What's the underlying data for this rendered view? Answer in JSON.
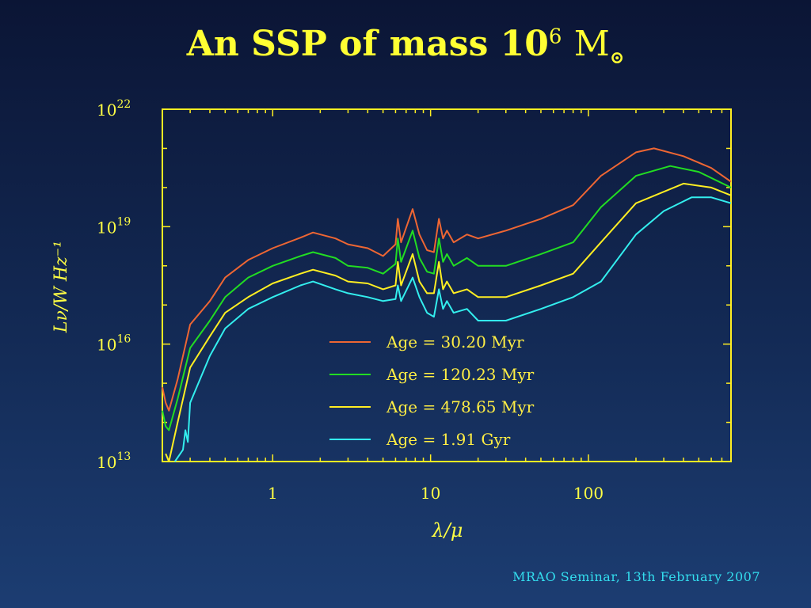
{
  "slide": {
    "title_text": "An SSP of mass ",
    "title_base": "10",
    "title_exponent": "6",
    "title_unit": "M",
    "title_sun_symbol": "⊙",
    "footer": "MRAO Seminar, 13th February 2007"
  },
  "chart_data": {
    "type": "line",
    "title": "An SSP of mass 10^6 M⊙",
    "xlabel": "λ/μ",
    "ylabel": "Lν/W Hz⁻¹",
    "xscale": "log",
    "yscale": "log",
    "xlim": [
      0.2,
      800
    ],
    "ylim_log10": [
      13,
      22
    ],
    "x_ticks": [
      {
        "label": "1",
        "value": 1
      },
      {
        "label": "10",
        "value": 10
      },
      {
        "label": "100",
        "value": 100
      }
    ],
    "y_ticks": [
      {
        "base": "10",
        "exp": "13",
        "log10": 13
      },
      {
        "base": "10",
        "exp": "16",
        "log10": 16
      },
      {
        "base": "10",
        "exp": "19",
        "log10": 19
      },
      {
        "base": "10",
        "exp": "22",
        "log10": 22
      }
    ],
    "legend_position": "lower-center",
    "series": [
      {
        "name": "Age = 30.20 Myr",
        "color": "#ee6633",
        "points": [
          [
            0.2,
            14.9
          ],
          [
            0.21,
            14.5
          ],
          [
            0.22,
            14.3
          ],
          [
            0.25,
            15.1
          ],
          [
            0.3,
            16.5
          ],
          [
            0.4,
            17.1
          ],
          [
            0.5,
            17.7
          ],
          [
            0.7,
            18.15
          ],
          [
            1.0,
            18.45
          ],
          [
            1.5,
            18.72
          ],
          [
            1.8,
            18.85
          ],
          [
            2.5,
            18.7
          ],
          [
            3,
            18.55
          ],
          [
            4,
            18.45
          ],
          [
            5,
            18.25
          ],
          [
            6,
            18.55
          ],
          [
            6.2,
            19.2
          ],
          [
            6.5,
            18.6
          ],
          [
            7.7,
            19.45
          ],
          [
            8.5,
            18.8
          ],
          [
            9.5,
            18.4
          ],
          [
            10.5,
            18.35
          ],
          [
            11.3,
            19.2
          ],
          [
            12,
            18.7
          ],
          [
            12.7,
            18.9
          ],
          [
            14,
            18.6
          ],
          [
            17,
            18.8
          ],
          [
            20,
            18.7
          ],
          [
            30,
            18.9
          ],
          [
            50,
            19.2
          ],
          [
            80,
            19.55
          ],
          [
            120,
            20.3
          ],
          [
            200,
            20.9
          ],
          [
            260,
            21.0
          ],
          [
            400,
            20.8
          ],
          [
            600,
            20.5
          ],
          [
            800,
            20.15
          ]
        ]
      },
      {
        "name": "Age = 120.23 Myr",
        "color": "#22dd22",
        "points": [
          [
            0.2,
            14.3
          ],
          [
            0.21,
            13.9
          ],
          [
            0.22,
            13.8
          ],
          [
            0.25,
            14.6
          ],
          [
            0.3,
            15.9
          ],
          [
            0.4,
            16.6
          ],
          [
            0.5,
            17.2
          ],
          [
            0.7,
            17.7
          ],
          [
            1.0,
            18.0
          ],
          [
            1.5,
            18.25
          ],
          [
            1.8,
            18.35
          ],
          [
            2.5,
            18.2
          ],
          [
            3,
            18.0
          ],
          [
            4,
            17.95
          ],
          [
            5,
            17.8
          ],
          [
            6,
            18.05
          ],
          [
            6.2,
            18.7
          ],
          [
            6.5,
            18.1
          ],
          [
            7.7,
            18.9
          ],
          [
            8.5,
            18.2
          ],
          [
            9.5,
            17.85
          ],
          [
            10.5,
            17.8
          ],
          [
            11.3,
            18.7
          ],
          [
            12,
            18.1
          ],
          [
            12.7,
            18.3
          ],
          [
            14,
            18.0
          ],
          [
            17,
            18.2
          ],
          [
            20,
            18.0
          ],
          [
            30,
            18.0
          ],
          [
            50,
            18.3
          ],
          [
            80,
            18.6
          ],
          [
            120,
            19.5
          ],
          [
            200,
            20.3
          ],
          [
            330,
            20.55
          ],
          [
            500,
            20.4
          ],
          [
            800,
            20.0
          ]
        ]
      },
      {
        "name": "Age = 478.65 Myr",
        "color": "#ffee22",
        "points": [
          [
            0.21,
            13.2
          ],
          [
            0.22,
            13.0
          ],
          [
            0.25,
            14.0
          ],
          [
            0.3,
            15.4
          ],
          [
            0.4,
            16.2
          ],
          [
            0.5,
            16.8
          ],
          [
            0.7,
            17.2
          ],
          [
            1.0,
            17.55
          ],
          [
            1.5,
            17.8
          ],
          [
            1.8,
            17.9
          ],
          [
            2.5,
            17.75
          ],
          [
            3,
            17.6
          ],
          [
            4,
            17.55
          ],
          [
            5,
            17.4
          ],
          [
            6,
            17.5
          ],
          [
            6.2,
            18.1
          ],
          [
            6.5,
            17.5
          ],
          [
            7.7,
            18.3
          ],
          [
            8.5,
            17.6
          ],
          [
            9.5,
            17.3
          ],
          [
            10.5,
            17.3
          ],
          [
            11.3,
            18.1
          ],
          [
            12,
            17.4
          ],
          [
            12.7,
            17.6
          ],
          [
            14,
            17.3
          ],
          [
            17,
            17.4
          ],
          [
            20,
            17.2
          ],
          [
            30,
            17.2
          ],
          [
            50,
            17.5
          ],
          [
            80,
            17.8
          ],
          [
            120,
            18.6
          ],
          [
            200,
            19.6
          ],
          [
            400,
            20.1
          ],
          [
            600,
            20.0
          ],
          [
            800,
            19.8
          ]
        ]
      },
      {
        "name": "Age = 1.91 Gyr",
        "color": "#33eeee",
        "points": [
          [
            0.24,
            13.0
          ],
          [
            0.27,
            13.3
          ],
          [
            0.28,
            13.8
          ],
          [
            0.29,
            13.5
          ],
          [
            0.3,
            14.5
          ],
          [
            0.4,
            15.7
          ],
          [
            0.5,
            16.4
          ],
          [
            0.7,
            16.9
          ],
          [
            1.0,
            17.2
          ],
          [
            1.5,
            17.5
          ],
          [
            1.8,
            17.6
          ],
          [
            2.5,
            17.4
          ],
          [
            3,
            17.3
          ],
          [
            4,
            17.2
          ],
          [
            5,
            17.1
          ],
          [
            6,
            17.15
          ],
          [
            6.2,
            17.5
          ],
          [
            6.5,
            17.1
          ],
          [
            7.7,
            17.7
          ],
          [
            8.5,
            17.2
          ],
          [
            9.5,
            16.8
          ],
          [
            10.5,
            16.7
          ],
          [
            11.3,
            17.4
          ],
          [
            12,
            16.9
          ],
          [
            12.7,
            17.1
          ],
          [
            14,
            16.8
          ],
          [
            17,
            16.9
          ],
          [
            20,
            16.6
          ],
          [
            30,
            16.6
          ],
          [
            50,
            16.9
          ],
          [
            80,
            17.2
          ],
          [
            120,
            17.6
          ],
          [
            200,
            18.8
          ],
          [
            300,
            19.4
          ],
          [
            450,
            19.75
          ],
          [
            600,
            19.75
          ],
          [
            800,
            19.6
          ]
        ]
      }
    ]
  }
}
